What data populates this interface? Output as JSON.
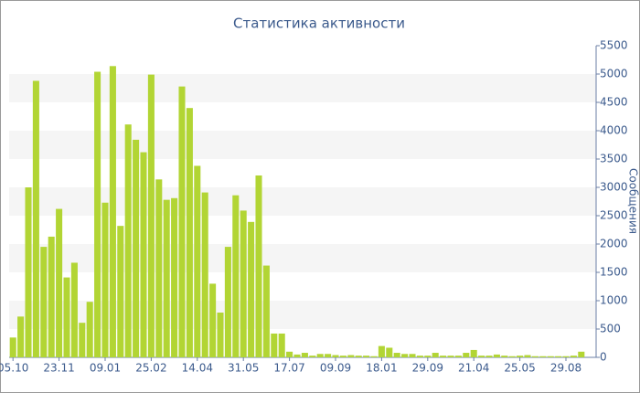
{
  "chart_data": {
    "type": "bar",
    "title": "Статистика активности",
    "y_label": "Сообщения",
    "categories": [
      "05.10",
      null,
      null,
      null,
      null,
      null,
      "23.11",
      null,
      null,
      null,
      null,
      null,
      "09.01",
      null,
      null,
      null,
      null,
      null,
      "25.02",
      null,
      null,
      null,
      null,
      null,
      "14.04",
      null,
      null,
      null,
      null,
      null,
      "31.05",
      null,
      null,
      null,
      null,
      null,
      "17.07",
      null,
      null,
      null,
      null,
      null,
      "09.09",
      null,
      null,
      null,
      null,
      null,
      "18.01",
      null,
      null,
      null,
      null,
      null,
      "29.09",
      null,
      null,
      null,
      null,
      null,
      "21.04",
      null,
      null,
      null,
      null,
      null,
      "25.05",
      null,
      null,
      null,
      null,
      null,
      "29.08",
      null,
      null
    ],
    "values": [
      350,
      720,
      3000,
      4880,
      1950,
      2130,
      2620,
      1410,
      1670,
      610,
      980,
      5040,
      2730,
      5140,
      2320,
      4110,
      3840,
      3620,
      4990,
      3140,
      2780,
      2810,
      4780,
      4400,
      3380,
      2910,
      1300,
      790,
      1950,
      2860,
      2590,
      2390,
      3210,
      1620,
      420,
      420,
      100,
      50,
      80,
      30,
      60,
      60,
      40,
      30,
      40,
      30,
      30,
      20,
      200,
      170,
      80,
      60,
      60,
      30,
      30,
      80,
      30,
      30,
      30,
      80,
      130,
      30,
      30,
      50,
      30,
      20,
      30,
      40,
      20,
      20,
      20,
      20,
      20,
      30,
      100
    ],
    "color": "#b2d534",
    "ylim": [
      0,
      5500
    ],
    "yticks": [
      0,
      500,
      1000,
      1500,
      2000,
      2500,
      3000,
      3500,
      4000,
      4500,
      5000,
      5500
    ],
    "grid": true,
    "y_axis_side": "right"
  }
}
